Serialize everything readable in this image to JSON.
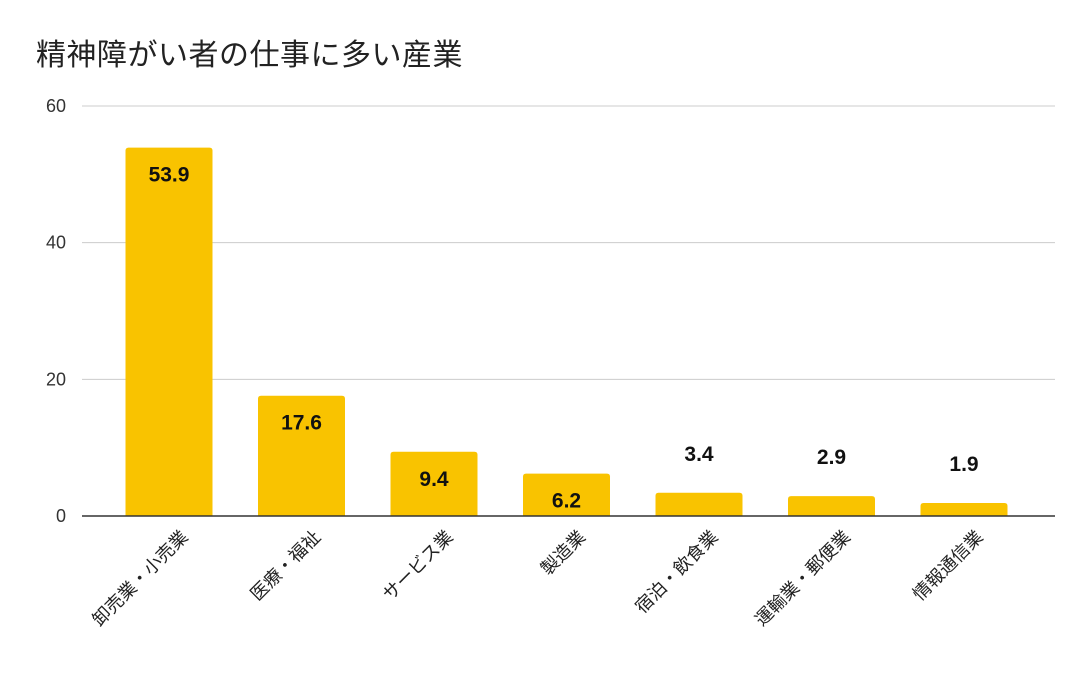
{
  "chart_data": {
    "type": "bar",
    "title": "精神障がい者の仕事に多い産業",
    "categories": [
      "卸売業・小売業",
      "医療・福祉",
      "サービス業",
      "製造業",
      "宿泊・飲食業",
      "運輸業・郵便業",
      "情報通信業"
    ],
    "values": [
      53.9,
      17.6,
      9.4,
      6.2,
      3.4,
      2.9,
      1.9
    ],
    "data_labels": [
      "53.9",
      "17.6",
      "9.4",
      "6.2",
      "3.4",
      "2.9",
      "1.9"
    ],
    "y_ticks": [
      "0",
      "20",
      "40",
      "60"
    ],
    "ylim": [
      0,
      60
    ],
    "xlabel": "",
    "ylabel": "",
    "grid": true,
    "legend": "none",
    "bar_color": "#F9C300"
  }
}
